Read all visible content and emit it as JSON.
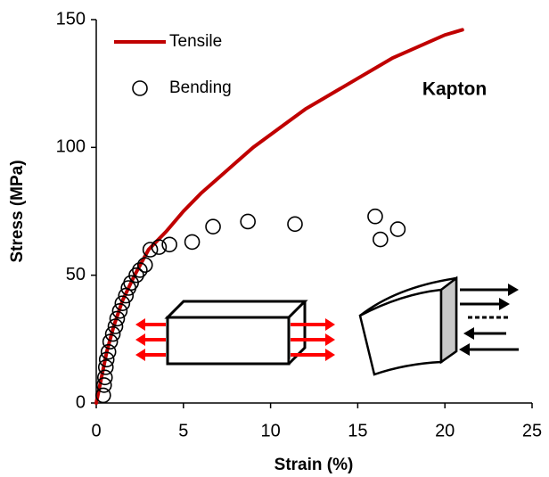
{
  "chart_data": {
    "type": "line",
    "xlabel": "Strain (%)",
    "ylabel": "Stress (MPa)",
    "annotation": "Kapton",
    "xlim": [
      0,
      25
    ],
    "xticks": [
      0,
      5,
      10,
      15,
      20,
      25
    ],
    "ylim": [
      0,
      150
    ],
    "yticks": [
      0,
      50,
      100,
      150
    ],
    "grid": false,
    "legend": "upper left",
    "series": [
      {
        "name": "Tensile",
        "color": "#c00000",
        "kind": "line",
        "x": [
          0,
          0.3,
          0.6,
          1,
          1.5,
          2.2,
          3,
          4,
          5,
          6,
          7,
          8,
          9,
          10,
          11,
          12,
          13,
          14,
          15,
          16,
          17,
          18,
          19,
          20,
          21
        ],
        "values": [
          0,
          10,
          20,
          30,
          40,
          50,
          60,
          67,
          75,
          82,
          88,
          94,
          100,
          105,
          110,
          115,
          119,
          123,
          127,
          131,
          135,
          138,
          141,
          144,
          146
        ]
      },
      {
        "name": "Bending",
        "color": "#000000",
        "kind": "marker",
        "x": [
          0.4,
          0.45,
          0.5,
          0.55,
          0.6,
          0.7,
          0.8,
          0.95,
          1.1,
          1.2,
          1.35,
          1.5,
          1.7,
          1.85,
          2.0,
          2.3,
          2.5,
          2.8,
          3.1,
          3.6,
          4.2,
          5.5,
          6.7,
          8.7,
          11.4,
          16.0,
          16.3,
          17.3
        ],
        "values": [
          3,
          7,
          10,
          14,
          17,
          20,
          24,
          27,
          30,
          33,
          36,
          39,
          42,
          45,
          47,
          50,
          52,
          54,
          60,
          61,
          62,
          63,
          69,
          71,
          70,
          73,
          64,
          68
        ]
      }
    ]
  }
}
